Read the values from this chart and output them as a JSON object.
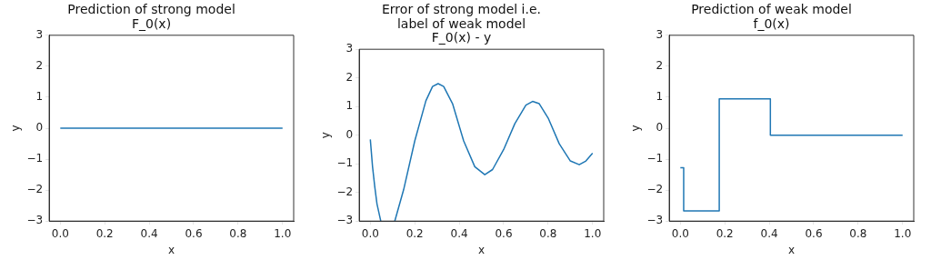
{
  "chart_data": [
    {
      "type": "line",
      "title": "Prediction of strong model\nF_0(x)",
      "xlabel": "x",
      "ylabel": "y",
      "xlim": [
        -0.05,
        1.05
      ],
      "ylim": [
        -3,
        3
      ],
      "xticks": [
        {
          "value": 0,
          "label": "0.0"
        },
        {
          "value": 0.2,
          "label": "0.2"
        },
        {
          "value": 0.4,
          "label": "0.4"
        },
        {
          "value": 0.6,
          "label": "0.6"
        },
        {
          "value": 0.8,
          "label": "0.8"
        },
        {
          "value": 1,
          "label": "1.0"
        }
      ],
      "yticks": [
        {
          "value": -3,
          "label": "−3"
        },
        {
          "value": -2,
          "label": "−2"
        },
        {
          "value": -1,
          "label": "−1"
        },
        0,
        1,
        2,
        3
      ],
      "x": [
        0,
        1
      ],
      "series": [
        {
          "color": "#1f77b4",
          "values": [
            0,
            0
          ]
        }
      ]
    },
    {
      "type": "line",
      "title": "Error of strong model i.e.\nlabel of weak model\nF_0(x) - y",
      "xlabel": "x",
      "ylabel": "y",
      "xlim": [
        -0.05,
        1.05
      ],
      "ylim": [
        -3,
        3
      ],
      "xticks": [
        {
          "value": 0,
          "label": "0.0"
        },
        {
          "value": 0.2,
          "label": "0.2"
        },
        {
          "value": 0.4,
          "label": "0.4"
        },
        {
          "value": 0.6,
          "label": "0.6"
        },
        {
          "value": 0.8,
          "label": "0.8"
        },
        {
          "value": 1,
          "label": "1.0"
        }
      ],
      "yticks": [
        {
          "value": -3,
          "label": "−3"
        },
        {
          "value": -2,
          "label": "−2"
        },
        {
          "value": -1,
          "label": "−1"
        },
        0,
        1,
        2,
        3
      ],
      "x": [
        0,
        0.01,
        0.02,
        0.03,
        0.047,
        0.08,
        0.11,
        0.15,
        0.2,
        0.25,
        0.28,
        0.305,
        0.33,
        0.37,
        0.42,
        0.47,
        0.515,
        0.55,
        0.6,
        0.65,
        0.7,
        0.73,
        0.76,
        0.8,
        0.85,
        0.9,
        0.94,
        0.97,
        1.0
      ],
      "series": [
        {
          "color": "#1f77b4",
          "values": [
            -0.15,
            -1.1,
            -1.8,
            -2.4,
            -3,
            null,
            -3,
            -1.9,
            -0.2,
            1.2,
            1.7,
            1.8,
            1.7,
            1.1,
            -0.2,
            -1.1,
            -1.38,
            -1.2,
            -0.5,
            0.4,
            1.05,
            1.18,
            1.1,
            0.6,
            -0.3,
            -0.9,
            -1.03,
            -0.9,
            -0.63
          ]
        }
      ]
    },
    {
      "type": "step",
      "title": "Prediction of weak model\nf_0(x)",
      "xlabel": "x",
      "ylabel": "y",
      "xlim": [
        -0.05,
        1.05
      ],
      "ylim": [
        -3,
        3
      ],
      "xticks": [
        {
          "value": 0,
          "label": "0.0"
        },
        {
          "value": 0.2,
          "label": "0.2"
        },
        {
          "value": 0.4,
          "label": "0.4"
        },
        {
          "value": 0.6,
          "label": "0.6"
        },
        {
          "value": 0.8,
          "label": "0.8"
        },
        {
          "value": 1,
          "label": "1.0"
        }
      ],
      "yticks": [
        {
          "value": -3,
          "label": "−3"
        },
        {
          "value": -2,
          "label": "−2"
        },
        {
          "value": -1,
          "label": "−1"
        },
        0,
        1,
        2,
        3
      ],
      "x": [
        0,
        0.015,
        0.175,
        0.405,
        1.0
      ],
      "series": [
        {
          "color": "#1f77b4",
          "values": [
            -1.28,
            -2.67,
            0.95,
            -0.23,
            -0.23
          ]
        }
      ]
    }
  ]
}
